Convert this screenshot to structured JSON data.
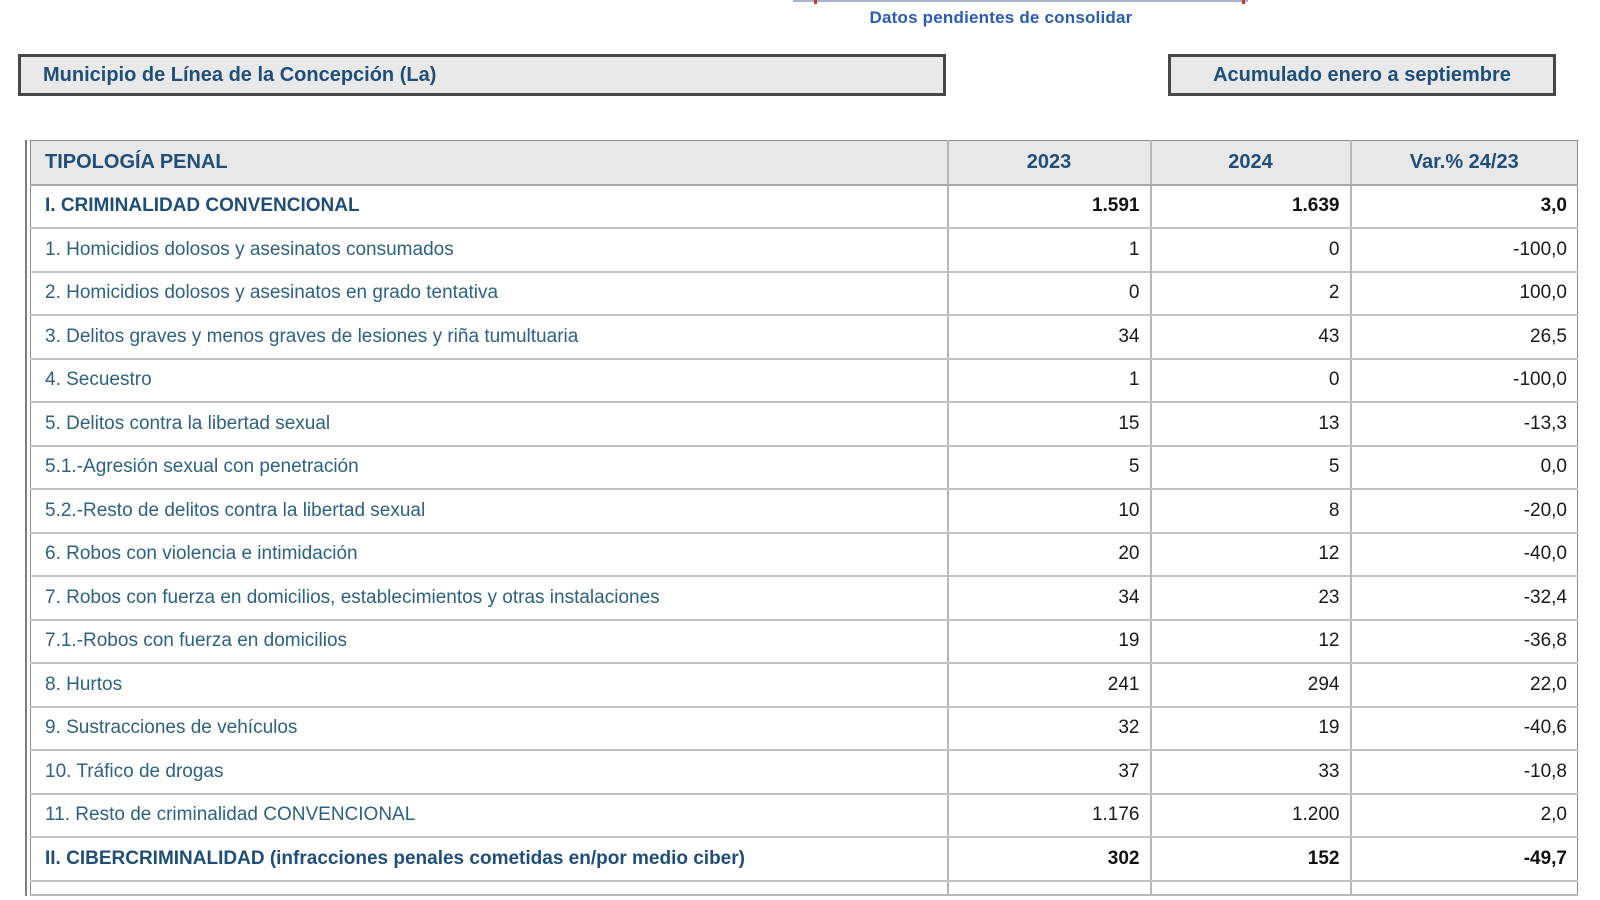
{
  "banner": {
    "note": "Datos pendientes de consolidar"
  },
  "header_boxes": {
    "municipality": "Municipio de Línea de la Concepción (La)",
    "period": "Acumulado enero a septiembre"
  },
  "table": {
    "columns": [
      "TIPOLOGÍA PENAL",
      "2023",
      "2024",
      "Var.% 24/23"
    ],
    "rows": [
      {
        "label": "I. CRIMINALIDAD CONVENCIONAL",
        "v2023": "1.591",
        "v2024": "1.639",
        "variation": "3,0",
        "bold": true
      },
      {
        "label": "1. Homicidios dolosos y asesinatos consumados",
        "v2023": "1",
        "v2024": "0",
        "variation": "-100,0",
        "bold": false
      },
      {
        "label": "2. Homicidios dolosos y asesinatos en grado tentativa",
        "v2023": "0",
        "v2024": "2",
        "variation": "100,0",
        "bold": false
      },
      {
        "label": "3. Delitos graves y menos graves de lesiones y riña tumultuaria",
        "v2023": "34",
        "v2024": "43",
        "variation": "26,5",
        "bold": false
      },
      {
        "label": "4. Secuestro",
        "v2023": "1",
        "v2024": "0",
        "variation": "-100,0",
        "bold": false
      },
      {
        "label": "5. Delitos contra la libertad sexual",
        "v2023": "15",
        "v2024": "13",
        "variation": "-13,3",
        "bold": false
      },
      {
        "label": "5.1.-Agresión sexual con penetración",
        "v2023": "5",
        "v2024": "5",
        "variation": "0,0",
        "bold": false
      },
      {
        "label": "5.2.-Resto de delitos contra la libertad sexual",
        "v2023": "10",
        "v2024": "8",
        "variation": "-20,0",
        "bold": false
      },
      {
        "label": "6. Robos con violencia e intimidación",
        "v2023": "20",
        "v2024": "12",
        "variation": "-40,0",
        "bold": false
      },
      {
        "label": "7. Robos con fuerza en domicilios, establecimientos y otras instalaciones",
        "v2023": "34",
        "v2024": "23",
        "variation": "-32,4",
        "bold": false
      },
      {
        "label": "7.1.-Robos con fuerza en domicilios",
        "v2023": "19",
        "v2024": "12",
        "variation": "-36,8",
        "bold": false
      },
      {
        "label": "8. Hurtos",
        "v2023": "241",
        "v2024": "294",
        "variation": "22,0",
        "bold": false
      },
      {
        "label": "9. Sustracciones de vehículos",
        "v2023": "32",
        "v2024": "19",
        "variation": "-40,6",
        "bold": false
      },
      {
        "label": "10. Tráfico de drogas",
        "v2023": "37",
        "v2024": "33",
        "variation": "-10,8",
        "bold": false
      },
      {
        "label": "11. Resto de criminalidad CONVENCIONAL",
        "v2023": "1.176",
        "v2024": "1.200",
        "variation": "2,0",
        "bold": false
      },
      {
        "label": "II. CIBERCRIMINALIDAD (infracciones penales cometidas en/por medio ciber)",
        "v2023": "302",
        "v2024": "152",
        "variation": "-49,7",
        "bold": true
      }
    ]
  },
  "colors": {
    "title_blue": "#1f4e79",
    "row_label_blue": "#2e6183",
    "banner_blue": "#2a5caf",
    "box_background": "#e9e9e9",
    "header_background": "#e8e8e8",
    "grid_line": "#c2c2c2",
    "box_border": "#474747"
  }
}
